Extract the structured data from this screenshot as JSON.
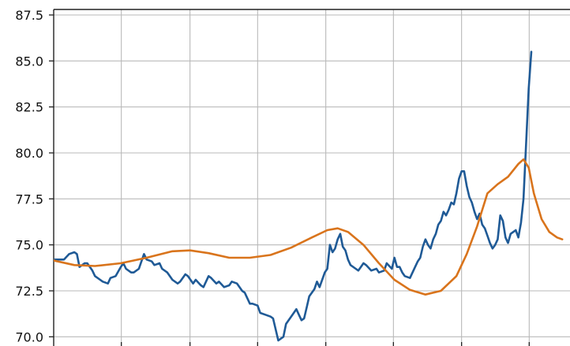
{
  "chart_data": {
    "type": "line",
    "title": "",
    "xlabel": "",
    "ylabel": "",
    "ylim": [
      69.5,
      87.8
    ],
    "x_range": [
      0,
      1
    ],
    "grid": true,
    "y_ticks": [
      70.0,
      72.5,
      75.0,
      77.5,
      80.0,
      82.5,
      85.0,
      87.5
    ],
    "y_tick_labels": [
      "70.0",
      "72.5",
      "75.0",
      "77.5",
      "80.0",
      "82.5",
      "85.0",
      "87.5"
    ],
    "x_gridlines": [
      0.131,
      0.264,
      0.395,
      0.527,
      0.658,
      0.79,
      0.921
    ],
    "series": [
      {
        "color": "#1f5a96",
        "values": [
          [
            0.0,
            74.2
          ],
          [
            0.01,
            74.2
          ],
          [
            0.02,
            74.2
          ],
          [
            0.03,
            74.5
          ],
          [
            0.04,
            74.6
          ],
          [
            0.045,
            74.5
          ],
          [
            0.05,
            73.8
          ],
          [
            0.06,
            74.0
          ],
          [
            0.065,
            74.0
          ],
          [
            0.075,
            73.6
          ],
          [
            0.08,
            73.3
          ],
          [
            0.09,
            73.1
          ],
          [
            0.095,
            73.0
          ],
          [
            0.105,
            72.9
          ],
          [
            0.11,
            73.2
          ],
          [
            0.12,
            73.3
          ],
          [
            0.13,
            73.8
          ],
          [
            0.135,
            74.0
          ],
          [
            0.14,
            73.7
          ],
          [
            0.15,
            73.5
          ],
          [
            0.155,
            73.5
          ],
          [
            0.165,
            73.7
          ],
          [
            0.175,
            74.5
          ],
          [
            0.18,
            74.2
          ],
          [
            0.19,
            74.1
          ],
          [
            0.195,
            73.9
          ],
          [
            0.205,
            74.0
          ],
          [
            0.21,
            73.7
          ],
          [
            0.22,
            73.5
          ],
          [
            0.23,
            73.1
          ],
          [
            0.24,
            72.9
          ],
          [
            0.245,
            73.0
          ],
          [
            0.255,
            73.4
          ],
          [
            0.26,
            73.3
          ],
          [
            0.27,
            72.9
          ],
          [
            0.275,
            73.1
          ],
          [
            0.285,
            72.8
          ],
          [
            0.29,
            72.7
          ],
          [
            0.3,
            73.3
          ],
          [
            0.305,
            73.2
          ],
          [
            0.315,
            72.9
          ],
          [
            0.32,
            73.0
          ],
          [
            0.33,
            72.7
          ],
          [
            0.34,
            72.8
          ],
          [
            0.345,
            73.0
          ],
          [
            0.355,
            72.9
          ],
          [
            0.365,
            72.5
          ],
          [
            0.37,
            72.4
          ],
          [
            0.38,
            71.8
          ],
          [
            0.385,
            71.8
          ],
          [
            0.395,
            71.7
          ],
          [
            0.4,
            71.3
          ],
          [
            0.41,
            71.2
          ],
          [
            0.42,
            71.1
          ],
          [
            0.425,
            71.0
          ],
          [
            0.43,
            70.4
          ],
          [
            0.435,
            69.8
          ],
          [
            0.445,
            70.0
          ],
          [
            0.45,
            70.7
          ],
          [
            0.46,
            71.1
          ],
          [
            0.465,
            71.3
          ],
          [
            0.47,
            71.5
          ],
          [
            0.475,
            71.2
          ],
          [
            0.48,
            70.9
          ],
          [
            0.485,
            71.0
          ],
          [
            0.49,
            71.6
          ],
          [
            0.495,
            72.2
          ],
          [
            0.505,
            72.6
          ],
          [
            0.51,
            73.0
          ],
          [
            0.515,
            72.7
          ],
          [
            0.525,
            73.5
          ],
          [
            0.53,
            73.7
          ],
          [
            0.535,
            75.0
          ],
          [
            0.54,
            74.6
          ],
          [
            0.545,
            74.8
          ],
          [
            0.55,
            75.3
          ],
          [
            0.555,
            75.6
          ],
          [
            0.56,
            74.9
          ],
          [
            0.565,
            74.7
          ],
          [
            0.57,
            74.2
          ],
          [
            0.575,
            73.9
          ],
          [
            0.585,
            73.7
          ],
          [
            0.59,
            73.6
          ],
          [
            0.595,
            73.8
          ],
          [
            0.6,
            74.0
          ],
          [
            0.605,
            73.9
          ],
          [
            0.615,
            73.6
          ],
          [
            0.625,
            73.7
          ],
          [
            0.63,
            73.5
          ],
          [
            0.64,
            73.6
          ],
          [
            0.645,
            74.0
          ],
          [
            0.655,
            73.7
          ],
          [
            0.66,
            74.3
          ],
          [
            0.665,
            73.8
          ],
          [
            0.67,
            73.8
          ],
          [
            0.675,
            73.5
          ],
          [
            0.68,
            73.3
          ],
          [
            0.69,
            73.2
          ],
          [
            0.7,
            73.8
          ],
          [
            0.705,
            74.1
          ],
          [
            0.71,
            74.3
          ],
          [
            0.715,
            74.9
          ],
          [
            0.72,
            75.3
          ],
          [
            0.725,
            75.0
          ],
          [
            0.73,
            74.8
          ],
          [
            0.735,
            75.3
          ],
          [
            0.74,
            75.6
          ],
          [
            0.745,
            76.1
          ],
          [
            0.75,
            76.3
          ],
          [
            0.755,
            76.8
          ],
          [
            0.76,
            76.6
          ],
          [
            0.765,
            76.9
          ],
          [
            0.77,
            77.3
          ],
          [
            0.775,
            77.2
          ],
          [
            0.78,
            77.8
          ],
          [
            0.785,
            78.6
          ],
          [
            0.79,
            79.0
          ],
          [
            0.795,
            79.0
          ],
          [
            0.8,
            78.2
          ],
          [
            0.805,
            77.6
          ],
          [
            0.81,
            77.3
          ],
          [
            0.815,
            76.8
          ],
          [
            0.82,
            76.4
          ],
          [
            0.825,
            76.7
          ],
          [
            0.83,
            76.1
          ],
          [
            0.835,
            75.9
          ],
          [
            0.84,
            75.5
          ],
          [
            0.845,
            75.1
          ],
          [
            0.85,
            74.8
          ],
          [
            0.855,
            75.0
          ],
          [
            0.86,
            75.3
          ],
          [
            0.865,
            76.6
          ],
          [
            0.87,
            76.3
          ],
          [
            0.875,
            75.4
          ],
          [
            0.88,
            75.1
          ],
          [
            0.885,
            75.6
          ],
          [
            0.89,
            75.7
          ],
          [
            0.895,
            75.8
          ],
          [
            0.9,
            75.4
          ],
          [
            0.905,
            76.2
          ],
          [
            0.91,
            77.5
          ],
          [
            0.915,
            80.5
          ],
          [
            0.92,
            83.5
          ],
          [
            0.925,
            85.5
          ]
        ]
      },
      {
        "color": "#d9741c",
        "values": [
          [
            0.0,
            74.15
          ],
          [
            0.04,
            73.9
          ],
          [
            0.08,
            73.85
          ],
          [
            0.13,
            74.0
          ],
          [
            0.18,
            74.3
          ],
          [
            0.23,
            74.65
          ],
          [
            0.264,
            74.7
          ],
          [
            0.3,
            74.55
          ],
          [
            0.34,
            74.3
          ],
          [
            0.38,
            74.3
          ],
          [
            0.42,
            74.45
          ],
          [
            0.46,
            74.85
          ],
          [
            0.5,
            75.4
          ],
          [
            0.53,
            75.8
          ],
          [
            0.55,
            75.9
          ],
          [
            0.57,
            75.7
          ],
          [
            0.6,
            75.0
          ],
          [
            0.63,
            74.0
          ],
          [
            0.66,
            73.1
          ],
          [
            0.69,
            72.55
          ],
          [
            0.72,
            72.3
          ],
          [
            0.75,
            72.5
          ],
          [
            0.78,
            73.3
          ],
          [
            0.8,
            74.5
          ],
          [
            0.82,
            76.0
          ],
          [
            0.84,
            77.8
          ],
          [
            0.86,
            78.3
          ],
          [
            0.88,
            78.7
          ],
          [
            0.9,
            79.4
          ],
          [
            0.91,
            79.65
          ],
          [
            0.92,
            79.2
          ],
          [
            0.93,
            77.8
          ],
          [
            0.945,
            76.4
          ],
          [
            0.96,
            75.7
          ],
          [
            0.975,
            75.4
          ],
          [
            0.985,
            75.3
          ]
        ]
      }
    ]
  }
}
